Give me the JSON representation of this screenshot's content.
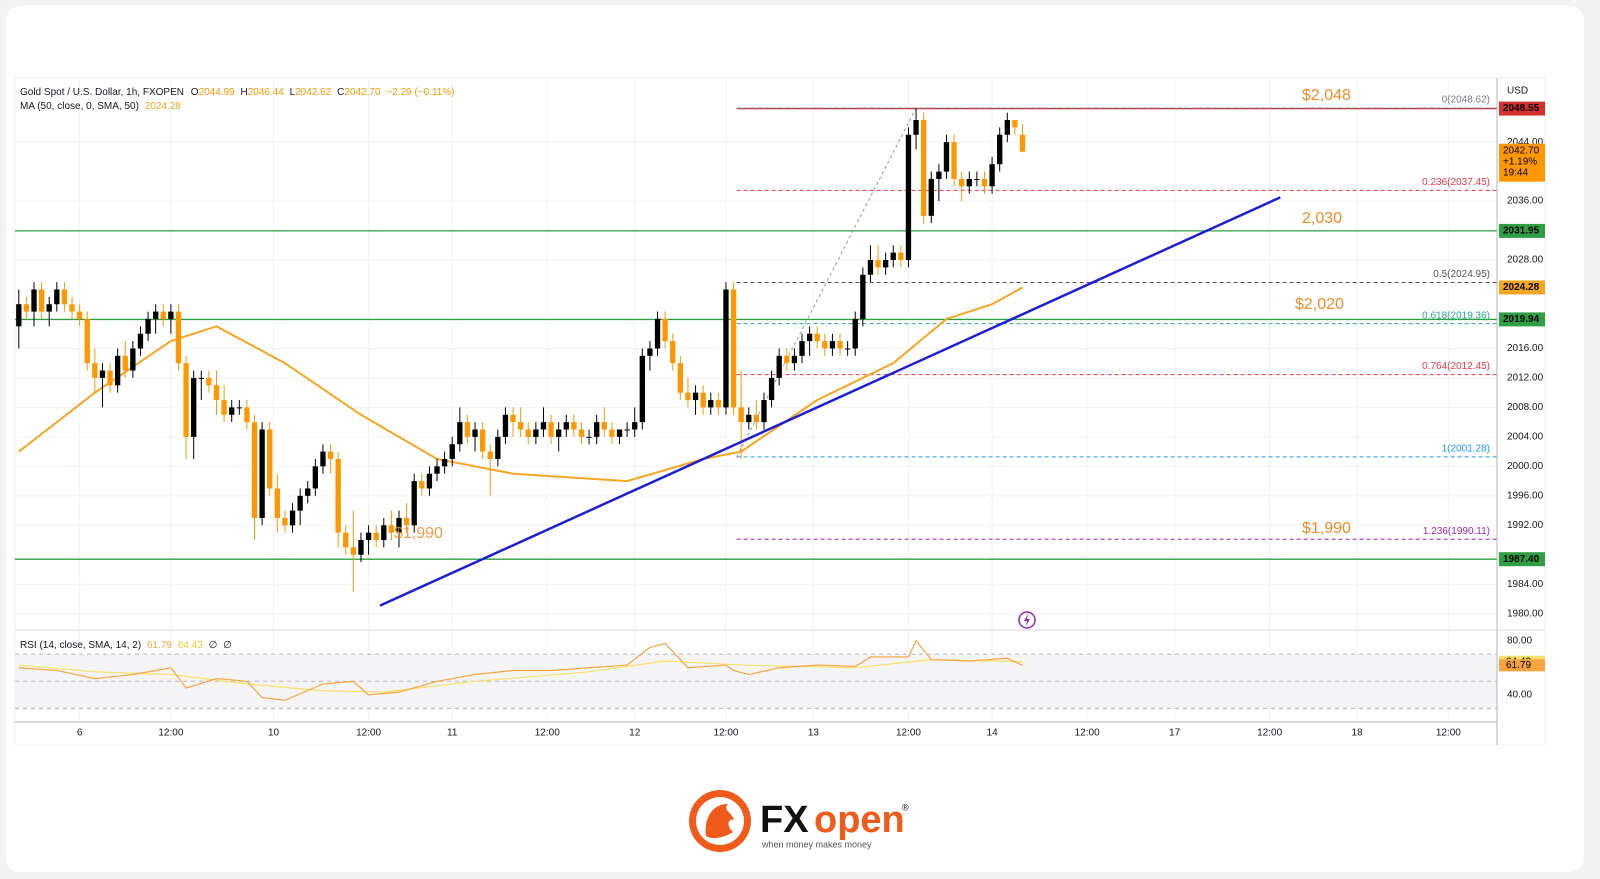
{
  "chart_data": {
    "type": "candlestick",
    "header": {
      "symbol": "Gold Spot / U.S. Dollar, 1h, FXOPEN",
      "ohlc": [
        {
          "k": "O",
          "v": "2044.99"
        },
        {
          "k": "H",
          "v": "2046.44"
        },
        {
          "k": "L",
          "v": "2042.62"
        },
        {
          "k": "C",
          "v": "2042.70"
        }
      ],
      "change": "−2.29 (−0.11%)",
      "ma_name": "MA (50, close, 0, SMA, 50)",
      "ma_value": "2024.28",
      "rsi_name": "RSI (14, close, SMA, 14, 2)",
      "rsi_values": [
        "61.79",
        "64.43",
        "∅",
        "∅"
      ]
    },
    "currency": "USD",
    "up_color": "#000000",
    "down_color": "#ff9800",
    "xlim": [
      -0.5,
      194.4
    ],
    "xticks": [
      {
        "value": 8,
        "label": "6"
      },
      {
        "value": 20,
        "label": "12:00"
      },
      {
        "value": 33.5,
        "label": "10"
      },
      {
        "value": 46,
        "label": "12:00"
      },
      {
        "value": 57,
        "label": "11"
      },
      {
        "value": 69.5,
        "label": "12:00"
      },
      {
        "value": 81,
        "label": "12"
      },
      {
        "value": 93,
        "label": "12:00"
      },
      {
        "value": 104.5,
        "label": "13"
      },
      {
        "value": 117,
        "label": "12:00"
      },
      {
        "value": 128,
        "label": "14"
      },
      {
        "value": 140.5,
        "label": "12:00"
      },
      {
        "value": 152,
        "label": "17"
      },
      {
        "value": 164.5,
        "label": "12:00"
      },
      {
        "value": 176,
        "label": "18"
      },
      {
        "value": 188,
        "label": "12:00"
      }
    ],
    "ylim": [
      1978.2,
      2052.7
    ],
    "yticks": [
      {
        "value": 1980,
        "label": "1980.00"
      },
      {
        "value": 1984,
        "label": "1984.00"
      },
      {
        "value": 1992,
        "label": "1992.00"
      },
      {
        "value": 1996,
        "label": "1996.00"
      },
      {
        "value": 2000,
        "label": "2000.00"
      },
      {
        "value": 2004,
        "label": "2004.00"
      },
      {
        "value": 2008,
        "label": "2008.00"
      },
      {
        "value": 2012,
        "label": "2012.00"
      },
      {
        "value": 2016,
        "label": "2016.00"
      },
      {
        "value": 2028,
        "label": "2028.00"
      },
      {
        "value": 2036,
        "label": "2036.00"
      },
      {
        "value": 2044,
        "label": "2044.00"
      }
    ],
    "candles": [
      [
        2019,
        2024,
        2016,
        2022
      ],
      [
        2022,
        2023,
        2020,
        2021
      ],
      [
        2021,
        2025,
        2019,
        2024
      ],
      [
        2024,
        2025,
        2020,
        2021
      ],
      [
        2021,
        2023,
        2019,
        2022
      ],
      [
        2022,
        2025,
        2021,
        2024
      ],
      [
        2024,
        2025,
        2021,
        2022
      ],
      [
        2022,
        2023,
        2020,
        2021
      ],
      [
        2021,
        2022,
        2019,
        2020
      ],
      [
        2020,
        2021,
        2013,
        2014
      ],
      [
        2014,
        2016,
        2010,
        2012
      ],
      [
        2012,
        2014,
        2008,
        2013
      ],
      [
        2013,
        2014,
        2010,
        2011
      ],
      [
        2011,
        2016,
        2010,
        2015
      ],
      [
        2015,
        2017,
        2012,
        2013
      ],
      [
        2013,
        2017,
        2012,
        2016
      ],
      [
        2016,
        2019,
        2015,
        2018
      ],
      [
        2018,
        2021,
        2017,
        2020
      ],
      [
        2020,
        2022,
        2018,
        2021
      ],
      [
        2021,
        2022,
        2019,
        2020
      ],
      [
        2020,
        2022,
        2018,
        2021
      ],
      [
        2021,
        2022,
        2013,
        2014
      ],
      [
        2014,
        2015,
        2001,
        2004
      ],
      [
        2004,
        2013,
        2001,
        2012
      ],
      [
        2012,
        2013,
        2009,
        2012
      ],
      [
        2012,
        2013,
        2010,
        2011
      ],
      [
        2011,
        2013,
        2007,
        2009
      ],
      [
        2009,
        2011,
        2006,
        2007
      ],
      [
        2007,
        2009,
        2006,
        2008
      ],
      [
        2008,
        2009,
        2007,
        2008
      ],
      [
        2008,
        2009,
        2005,
        2006
      ],
      [
        2006,
        2007,
        1990,
        1993
      ],
      [
        1993,
        2006,
        1992,
        2005
      ],
      [
        2005,
        2006,
        1996,
        1997
      ],
      [
        1997,
        1999,
        1991,
        1993
      ],
      [
        1993,
        1994,
        1991,
        1992
      ],
      [
        1992,
        1995,
        1991,
        1994
      ],
      [
        1994,
        1997,
        1992,
        1996
      ],
      [
        1996,
        1998,
        1995,
        1997
      ],
      [
        1997,
        2001,
        1996,
        2000
      ],
      [
        2000,
        2003,
        1999,
        2002
      ],
      [
        2002,
        2003,
        1999,
        2001
      ],
      [
        2001,
        2002,
        1989,
        1991
      ],
      [
        1991,
        1992,
        1988,
        1989
      ],
      [
        1989,
        1994,
        1983,
        1988
      ],
      [
        1988,
        1991,
        1987,
        1990
      ],
      [
        1990,
        1992,
        1988,
        1991
      ],
      [
        1991,
        1992,
        1989,
        1990
      ],
      [
        1990,
        1993,
        1989,
        1992
      ],
      [
        1992,
        1994,
        1990,
        1991
      ],
      [
        1991,
        1994,
        1989,
        1993
      ],
      [
        1993,
        1995,
        1991,
        1992
      ],
      [
        1992,
        1999,
        1991,
        1998
      ],
      [
        1998,
        1999,
        1996,
        1997
      ],
      [
        1997,
        2000,
        1996,
        1999
      ],
      [
        1999,
        2001,
        1998,
        2000
      ],
      [
        2000,
        2002,
        1999,
        2001
      ],
      [
        2001,
        2004,
        2000,
        2003
      ],
      [
        2003,
        2008,
        2002,
        2006
      ],
      [
        2006,
        2007,
        2003,
        2004
      ],
      [
        2004,
        2006,
        2002,
        2005
      ],
      [
        2005,
        2006,
        2001,
        2002
      ],
      [
        2002,
        2003,
        1996,
        2001
      ],
      [
        2001,
        2005,
        2000,
        2004
      ],
      [
        2004,
        2008,
        2003,
        2007
      ],
      [
        2007,
        2008,
        2004,
        2006
      ],
      [
        2006,
        2008,
        2004,
        2005
      ],
      [
        2005,
        2006,
        2003,
        2004
      ],
      [
        2004,
        2006,
        2003,
        2005
      ],
      [
        2005,
        2008,
        2004,
        2006
      ],
      [
        2006,
        2007,
        2003,
        2004
      ],
      [
        2004,
        2006,
        2002,
        2005
      ],
      [
        2005,
        2007,
        2004,
        2006
      ],
      [
        2006,
        2007,
        2004,
        2005
      ],
      [
        2005,
        2006,
        2003,
        2004
      ],
      [
        2004,
        2005,
        2003,
        2004
      ],
      [
        2004,
        2007,
        2003,
        2006
      ],
      [
        2006,
        2008,
        2004,
        2005
      ],
      [
        2005,
        2006,
        2003,
        2004
      ],
      [
        2004,
        2005,
        2003,
        2005
      ],
      [
        2005,
        2006,
        2004,
        2005
      ],
      [
        2005,
        2008,
        2004,
        2006
      ],
      [
        2006,
        2016,
        2005,
        2015
      ],
      [
        2015,
        2017,
        2013,
        2016
      ],
      [
        2016,
        2021,
        2015,
        2020
      ],
      [
        2020,
        2021,
        2016,
        2017
      ],
      [
        2017,
        2018,
        2013,
        2014
      ],
      [
        2014,
        2015,
        2009,
        2010
      ],
      [
        2010,
        2012,
        2008,
        2009
      ],
      [
        2009,
        2011,
        2007,
        2010
      ],
      [
        2010,
        2011,
        2007,
        2008
      ],
      [
        2008,
        2010,
        2007,
        2009
      ],
      [
        2009,
        2010,
        2007,
        2008
      ],
      [
        2008,
        2025,
        2007,
        2024
      ],
      [
        2024,
        2025,
        2007,
        2008
      ],
      [
        2008,
        2013,
        2001,
        2006
      ],
      [
        2006,
        2008,
        2005,
        2007
      ],
      [
        2007,
        2009,
        2005,
        2006
      ],
      [
        2006,
        2010,
        2005,
        2009
      ],
      [
        2009,
        2013,
        2008,
        2012
      ],
      [
        2012,
        2016,
        2011,
        2015
      ],
      [
        2015,
        2016,
        2013,
        2014
      ],
      [
        2014,
        2016,
        2013,
        2015
      ],
      [
        2015,
        2018,
        2014,
        2017
      ],
      [
        2017,
        2019,
        2015,
        2018
      ],
      [
        2018,
        2019,
        2016,
        2017
      ],
      [
        2017,
        2018,
        2015,
        2016
      ],
      [
        2016,
        2018,
        2015,
        2017
      ],
      [
        2017,
        2018,
        2015,
        2016
      ],
      [
        2016,
        2017,
        2015,
        2016
      ],
      [
        2016,
        2021,
        2015,
        2020
      ],
      [
        2020,
        2027,
        2019,
        2026
      ],
      [
        2026,
        2030,
        2025,
        2028
      ],
      [
        2028,
        2030,
        2026,
        2027
      ],
      [
        2027,
        2029,
        2026,
        2028
      ],
      [
        2028,
        2030,
        2027,
        2029
      ],
      [
        2029,
        2030,
        2027,
        2028
      ],
      [
        2028,
        2046,
        2027,
        2045
      ],
      [
        2045,
        2048.6,
        2043,
        2047
      ],
      [
        2047,
        2048,
        2033,
        2034
      ],
      [
        2034,
        2040,
        2033,
        2039
      ],
      [
        2039,
        2041,
        2036,
        2040
      ],
      [
        2040,
        2045,
        2039,
        2044
      ],
      [
        2044,
        2045,
        2038,
        2039
      ],
      [
        2039,
        2040,
        2036,
        2038
      ],
      [
        2038,
        2040,
        2037,
        2039
      ],
      [
        2039,
        2040,
        2038,
        2039
      ],
      [
        2039,
        2040,
        2037,
        2038
      ],
      [
        2038,
        2042,
        2037,
        2041
      ],
      [
        2041,
        2046,
        2040,
        2045
      ],
      [
        2045,
        2048,
        2044,
        2047
      ],
      [
        2047,
        2047,
        2045,
        2046
      ],
      [
        2044.99,
        2046.44,
        2042.62,
        2042.7
      ]
    ],
    "ma": {
      "color": "#f5a623",
      "x": [
        0,
        10,
        20,
        26,
        35,
        45,
        55,
        65,
        80,
        90,
        95,
        105,
        115,
        122,
        128,
        132
      ],
      "values": [
        2002,
        2010,
        2017,
        2019,
        2014,
        2007,
        2001,
        1999,
        1998,
        2001,
        2002,
        2009,
        2014,
        2020,
        2022,
        2024.28
      ]
    },
    "trendline": {
      "color": "#1e1ed2",
      "x": [
        47.5,
        165.9
      ],
      "values": [
        1981.1,
        2036.5
      ]
    },
    "levels": [
      {
        "value": 2048.55,
        "color": "#d32f2f",
        "from": 94.4
      },
      {
        "value": 2031.95,
        "color": "#2ea043",
        "from": -0.5
      },
      {
        "value": 2019.94,
        "color": "#2ea043",
        "from": -0.5
      },
      {
        "value": 1987.4,
        "color": "#2ea043",
        "from": -0.5
      }
    ],
    "fib": {
      "from": 94.4,
      "levels": [
        {
          "value": 2048.62,
          "label": "0(2048.62)",
          "color": "#787b86"
        },
        {
          "value": 2037.45,
          "label": "0.236(2037.45)",
          "color": "#f23645"
        },
        {
          "value": 2024.95,
          "label": "0.5(2024.95)",
          "color": "#555555"
        },
        {
          "value": 2019.36,
          "label": "0.618(2019.36)",
          "color": "#22ab94"
        },
        {
          "value": 2012.45,
          "label": "0.764(2012.45)",
          "color": "#f23645"
        },
        {
          "value": 2001.28,
          "label": "1(2001.28)",
          "color": "#2196f3"
        },
        {
          "value": 1990.11,
          "label": "1.236(1990.11)",
          "color": "#9c27b0"
        }
      ]
    },
    "annotations": [
      "$2,048",
      "2,030",
      "$2,020",
      "$1,990",
      "$1,990"
    ],
    "badges": [
      {
        "value": 2048.55,
        "label": "2048.55",
        "color": "#d32f2f"
      },
      {
        "value": 2031.95,
        "label": "2031.95",
        "color": "#2ea043"
      },
      {
        "value": 2024.28,
        "label": "2024.28",
        "color": "#f5a623"
      },
      {
        "value": 2019.94,
        "label": "2019.94",
        "color": "#2ea043"
      },
      {
        "value": 1987.4,
        "label": "1987.40",
        "color": "#2ea043"
      }
    ],
    "last": {
      "value": 2042.7,
      "lines": [
        "2042.70",
        "+1.19%",
        "19:44"
      ],
      "color": "#ff9800"
    },
    "rsi": {
      "ylim": [
        21.4,
        87.9
      ],
      "yticks": [
        {
          "value": 80,
          "label": "80.00"
        },
        {
          "value": 40,
          "label": "40.00"
        }
      ],
      "bands": [
        70,
        50,
        30
      ],
      "line": {
        "color": "#f7a440",
        "x": [
          0,
          5,
          10,
          15,
          20,
          22,
          26,
          30,
          32,
          35,
          40,
          44,
          46,
          50,
          55,
          60,
          65,
          70,
          75,
          80,
          83,
          85,
          88,
          93,
          94,
          96,
          100,
          105,
          110,
          112,
          117,
          118,
          120,
          125,
          130,
          132
        ],
        "values": [
          60,
          58,
          52,
          55,
          60,
          45,
          52,
          50,
          38,
          36,
          48,
          50,
          40,
          42,
          50,
          55,
          58,
          58,
          60,
          62,
          75,
          78,
          60,
          62,
          58,
          55,
          60,
          62,
          61,
          68,
          68,
          80,
          66,
          65,
          67,
          61.79
        ]
      },
      "sma": {
        "color": "#f5e16a",
        "x": [
          0,
          10,
          20,
          30,
          40,
          48,
          60,
          75,
          85,
          95,
          110,
          120,
          132
        ],
        "values": [
          62,
          57,
          55,
          48,
          43,
          42,
          50,
          57,
          65,
          62,
          60,
          66,
          64.43
        ]
      },
      "badges": [
        {
          "value": 64.43,
          "label": "64.43",
          "color": "#f5e16a"
        },
        {
          "value": 61.79,
          "label": "61.79",
          "color": "#f7a440"
        }
      ]
    },
    "logo": {
      "brand_a": "FX",
      "brand_b": "open",
      "reg": "®",
      "tagline": "when money makes money"
    }
  }
}
